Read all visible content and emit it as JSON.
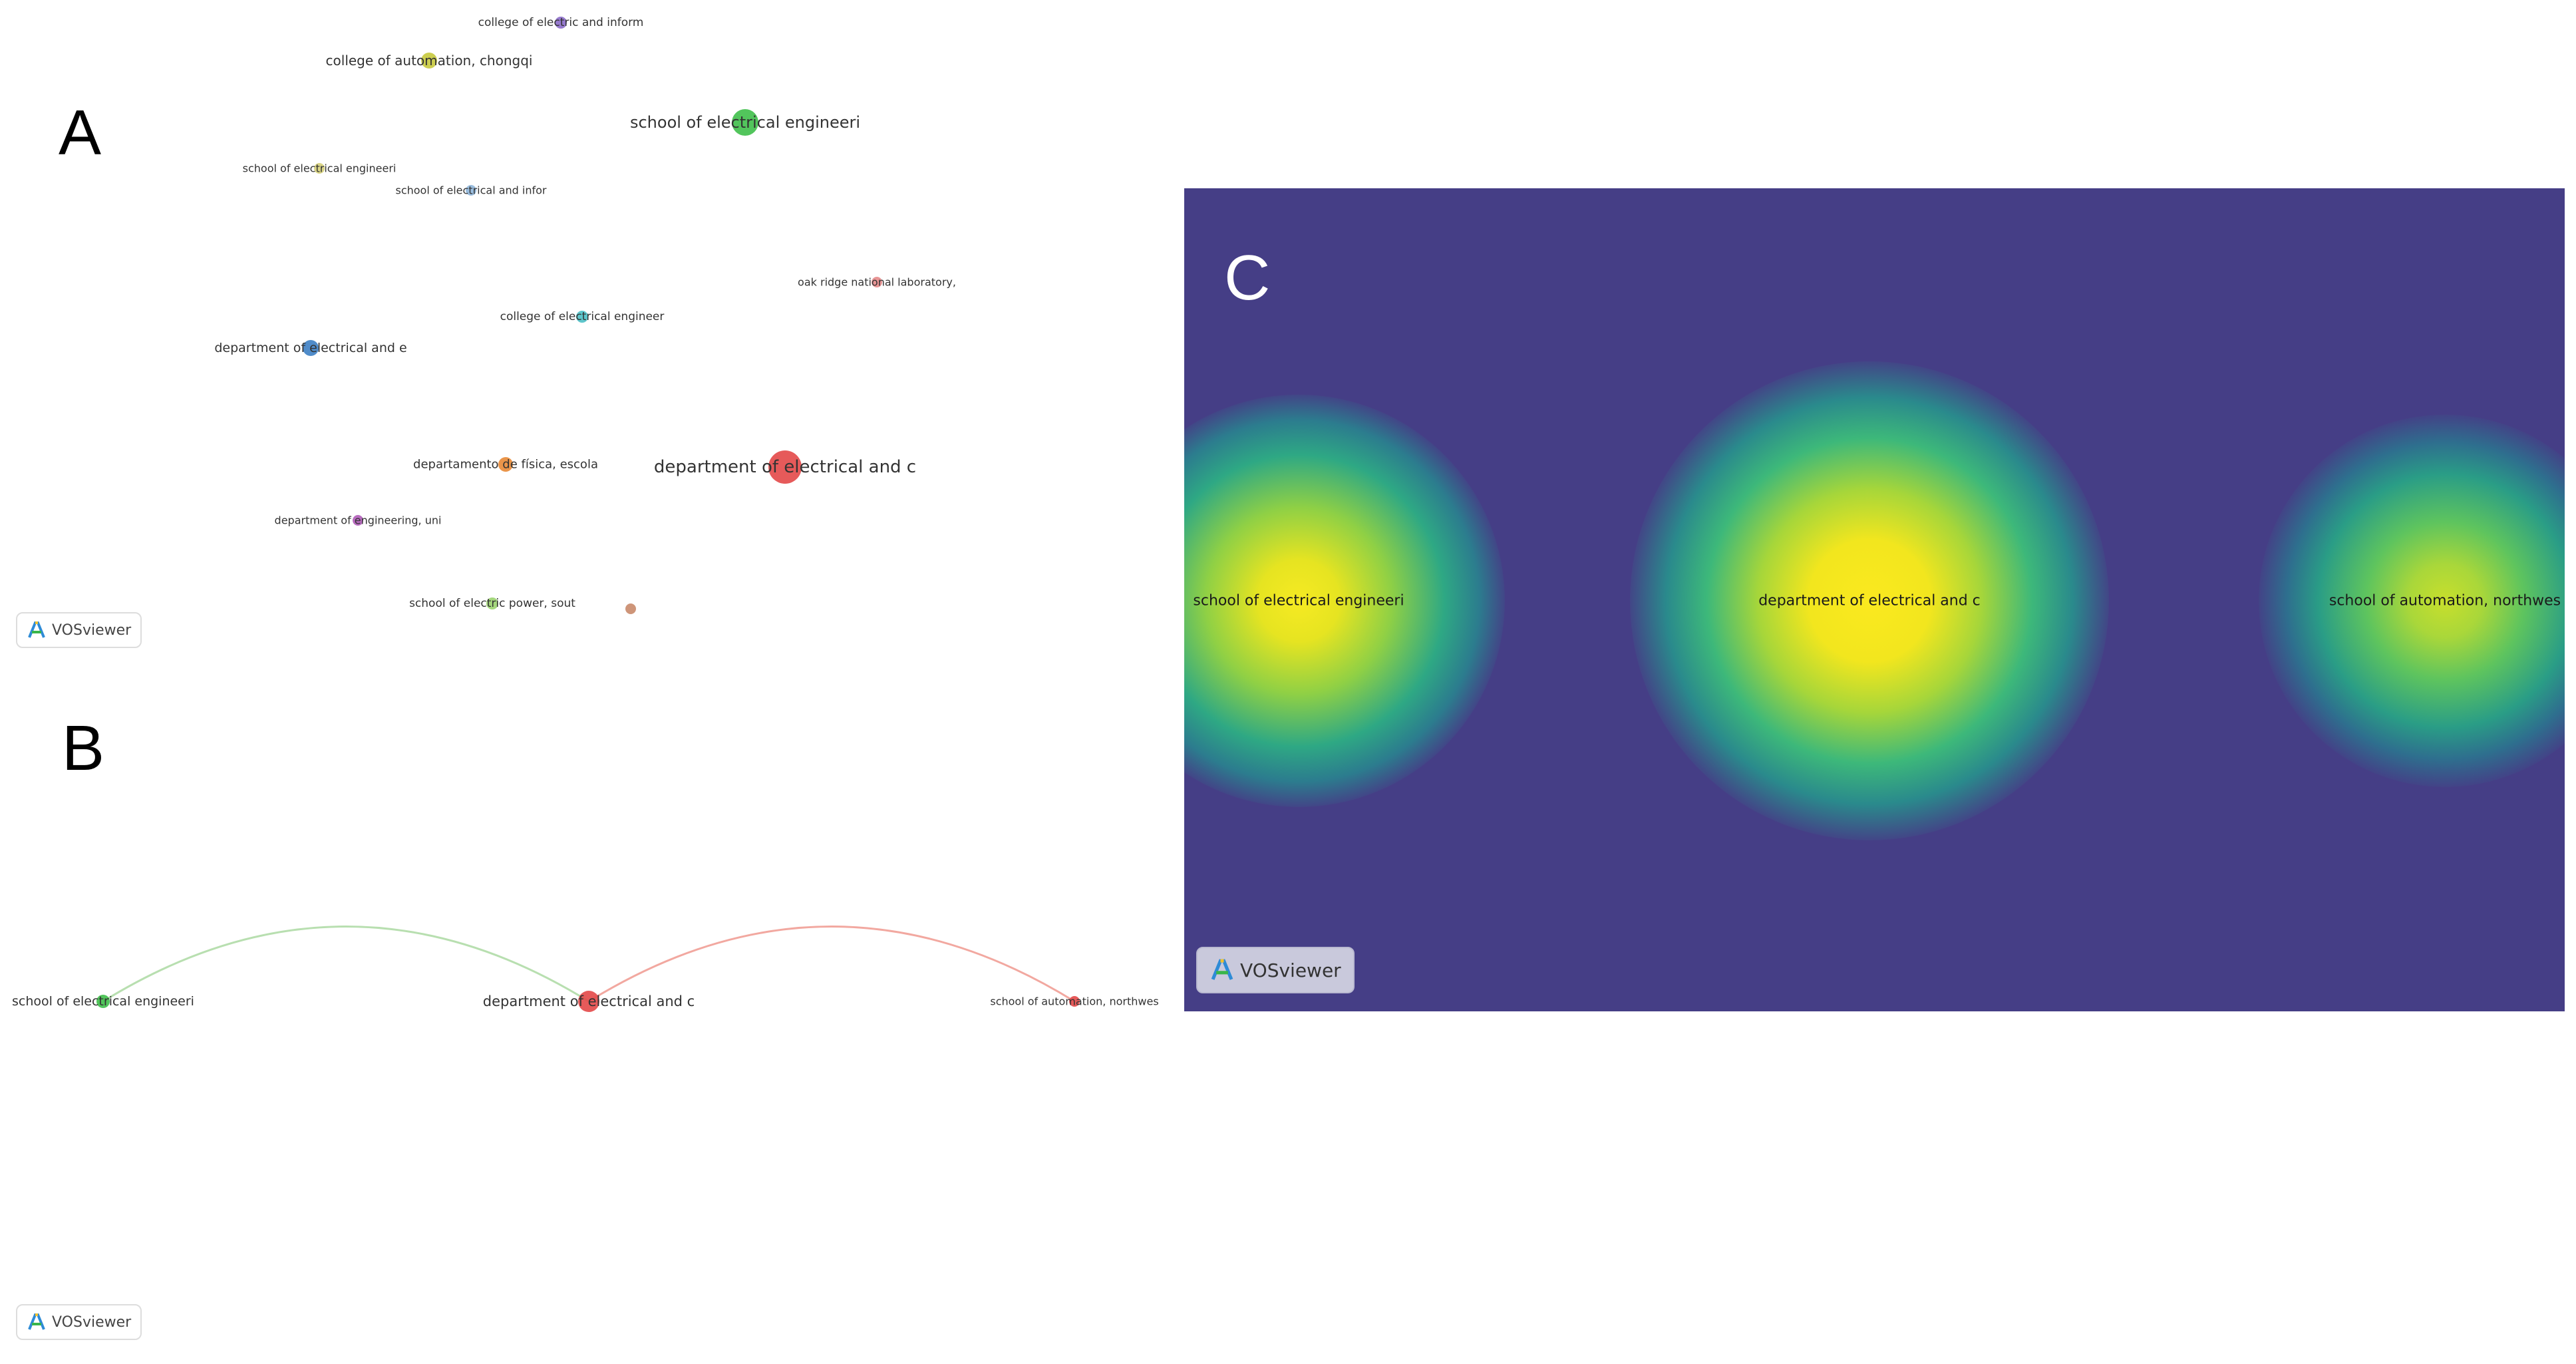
{
  "panel_a": {
    "letter": "A",
    "nodes": [
      {
        "label": "college of electric and inform",
        "color": "#8b6bc9"
      },
      {
        "label": "college of automation, chongqi",
        "color": "#c7c93d"
      },
      {
        "label": "school of electrical engineeri",
        "color": "#3fbf4a"
      },
      {
        "label": "school of electrical engineeri",
        "color": "#d6d07a"
      },
      {
        "label": "school of electrical and infor",
        "color": "#8fb6da"
      },
      {
        "label": "oak ridge national laboratory,",
        "color": "#e58a8a"
      },
      {
        "label": "college of electrical engineer",
        "color": "#4cc0c7"
      },
      {
        "label": "department of electrical and e",
        "color": "#3d7fc4"
      },
      {
        "label": "departamento de física, escola",
        "color": "#e88a36"
      },
      {
        "label": "department of electrical and c",
        "color": "#e34848"
      },
      {
        "label": "department of engineering, uni",
        "color": "#b05cb8"
      },
      {
        "label": "school of electric power, sout",
        "color": "#9bd36f"
      },
      {
        "label": "",
        "color": "#c98a6a"
      }
    ],
    "badge": "VOSviewer"
  },
  "panel_b": {
    "letter": "B",
    "nodes": [
      {
        "label": "school of electrical engineeri",
        "color": "#3fbf4a"
      },
      {
        "label": "department of electrical and c",
        "color": "#e34848"
      },
      {
        "label": "school of automation, northwes",
        "color": "#e34848"
      }
    ],
    "edge_colors": [
      "#b8dfb0",
      "#f2a8a0"
    ],
    "badge": "VOSviewer"
  },
  "panel_c": {
    "letter": "C",
    "labels": [
      "school of electrical engineeri",
      "department of electrical and c",
      "school of automation, northwes"
    ],
    "background": "#453e86",
    "badge": "VOSviewer"
  }
}
